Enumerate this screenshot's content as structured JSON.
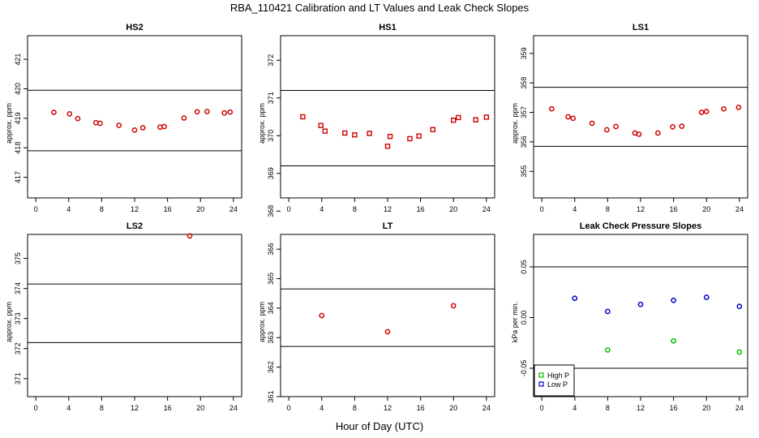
{
  "figure": {
    "title": "RBA_110421  Calibration and LT Values and Leak Check Slopes",
    "xlabel": "Hour of Day (UTC)"
  },
  "chart_data": [
    {
      "type": "scatter",
      "title": "HS2",
      "ylabel": "approx. ppm",
      "xlim": [
        -1,
        25
      ],
      "xticks": [
        0,
        4,
        8,
        12,
        16,
        20,
        24
      ],
      "ylim": [
        416.3,
        421.8
      ],
      "yticks": [
        417,
        418,
        419,
        420,
        421
      ],
      "hlines": [
        419.95,
        417.9
      ],
      "series": [
        {
          "color": "#d00000",
          "marker": "circle",
          "x": [
            2.2,
            4.1,
            5.1,
            7.3,
            7.8,
            10.1,
            12,
            13,
            15.1,
            15.6,
            18,
            19.6,
            20.8,
            22.9,
            23.6
          ],
          "y": [
            419.2,
            419.15,
            418.99,
            418.85,
            418.83,
            418.76,
            418.6,
            418.68,
            418.7,
            418.72,
            419.01,
            419.22,
            419.23,
            419.18,
            419.21
          ]
        }
      ]
    },
    {
      "type": "scatter",
      "title": "HS1",
      "ylabel": "approx. ppm",
      "xlim": [
        -1,
        25
      ],
      "xticks": [
        0,
        4,
        8,
        12,
        16,
        20,
        24
      ],
      "ylim": [
        368.35,
        372.65
      ],
      "yticks": [
        368,
        369,
        370,
        371,
        372
      ],
      "ytick_labels": [
        "368",
        "369",
        "370",
        "371",
        "372"
      ],
      "hlines": [
        371.2,
        369.2
      ],
      "series": [
        {
          "color": "#d00000",
          "marker": "square",
          "x": [
            1.7,
            3.9,
            4.4,
            6.8,
            8,
            9.8,
            12,
            12.3,
            14.7,
            15.8,
            17.5,
            20,
            20.6,
            22.7,
            24
          ],
          "y": [
            370.5,
            370.27,
            370.12,
            370.07,
            370.02,
            370.06,
            369.72,
            369.98,
            369.92,
            369.99,
            370.16,
            370.41,
            370.48,
            370.42,
            370.49
          ]
        }
      ]
    },
    {
      "type": "scatter",
      "title": "LS1",
      "ylabel": "approx. ppm",
      "xlim": [
        -1,
        25
      ],
      "xticks": [
        0,
        4,
        8,
        12,
        16,
        20,
        24
      ],
      "ylim": [
        354.1,
        359.6
      ],
      "yticks": [
        355,
        356,
        357,
        358,
        359
      ],
      "hlines": [
        357.85,
        355.85
      ],
      "series": [
        {
          "color": "#d00000",
          "marker": "circle",
          "x": [
            1.2,
            3.2,
            3.8,
            6.1,
            7.9,
            9,
            11.3,
            11.8,
            14.1,
            15.9,
            17,
            19.4,
            20,
            22.1,
            23.9
          ],
          "y": [
            357.12,
            356.85,
            356.8,
            356.63,
            356.41,
            356.52,
            356.3,
            356.26,
            356.3,
            356.51,
            356.53,
            357,
            357.03,
            357.12,
            357.17
          ]
        }
      ]
    },
    {
      "type": "scatter",
      "title": "LS2",
      "ylabel": "approx. ppm",
      "xlim": [
        -1,
        25
      ],
      "xticks": [
        0,
        4,
        8,
        12,
        16,
        20,
        24
      ],
      "ylim": [
        370.4,
        375.8
      ],
      "yticks": [
        371,
        372,
        373,
        374,
        375
      ],
      "hlines": [
        374.15,
        372.2
      ],
      "series": [
        {
          "color": "#d00000",
          "marker": "circle",
          "x": [
            18.7
          ],
          "y": [
            375.75
          ]
        }
      ]
    },
    {
      "type": "scatter",
      "title": "LT",
      "ylabel": "approx. ppm",
      "xlim": [
        -1,
        25
      ],
      "xticks": [
        0,
        4,
        8,
        12,
        16,
        20,
        24
      ],
      "ylim": [
        361,
        366.5
      ],
      "yticks": [
        361,
        362,
        363,
        364,
        365,
        366
      ],
      "hlines": [
        364.65,
        362.7
      ],
      "series": [
        {
          "color": "#d00000",
          "marker": "circle",
          "x": [
            4,
            12,
            20
          ],
          "y": [
            363.75,
            363.2,
            364.08
          ]
        }
      ]
    },
    {
      "type": "scatter",
      "title": "Leak Check Pressure Slopes",
      "ylabel": "kPa per min.",
      "xlim": [
        -1,
        25
      ],
      "xticks": [
        0,
        4,
        8,
        12,
        16,
        20,
        24
      ],
      "ylim": [
        -0.078,
        0.082
      ],
      "yticks": [
        -0.05,
        0,
        0.05
      ],
      "ytick_labels": [
        "-0.05",
        "0.00",
        "0.05"
      ],
      "hlines": [
        0.05,
        -0.05
      ],
      "legend": {
        "position": "bottom-left",
        "entries": [
          "High P",
          "Low P"
        ]
      },
      "series": [
        {
          "name": "High P",
          "color": "#00c000",
          "marker": "circle",
          "x": [
            8,
            16,
            24
          ],
          "y": [
            -0.032,
            -0.023,
            -0.034
          ]
        },
        {
          "name": "Low P",
          "color": "#0000c8",
          "marker": "circle",
          "x": [
            4,
            8,
            12,
            16,
            20,
            24
          ],
          "y": [
            0.019,
            0.006,
            0.013,
            0.017,
            0.02,
            0.011
          ]
        }
      ]
    }
  ]
}
